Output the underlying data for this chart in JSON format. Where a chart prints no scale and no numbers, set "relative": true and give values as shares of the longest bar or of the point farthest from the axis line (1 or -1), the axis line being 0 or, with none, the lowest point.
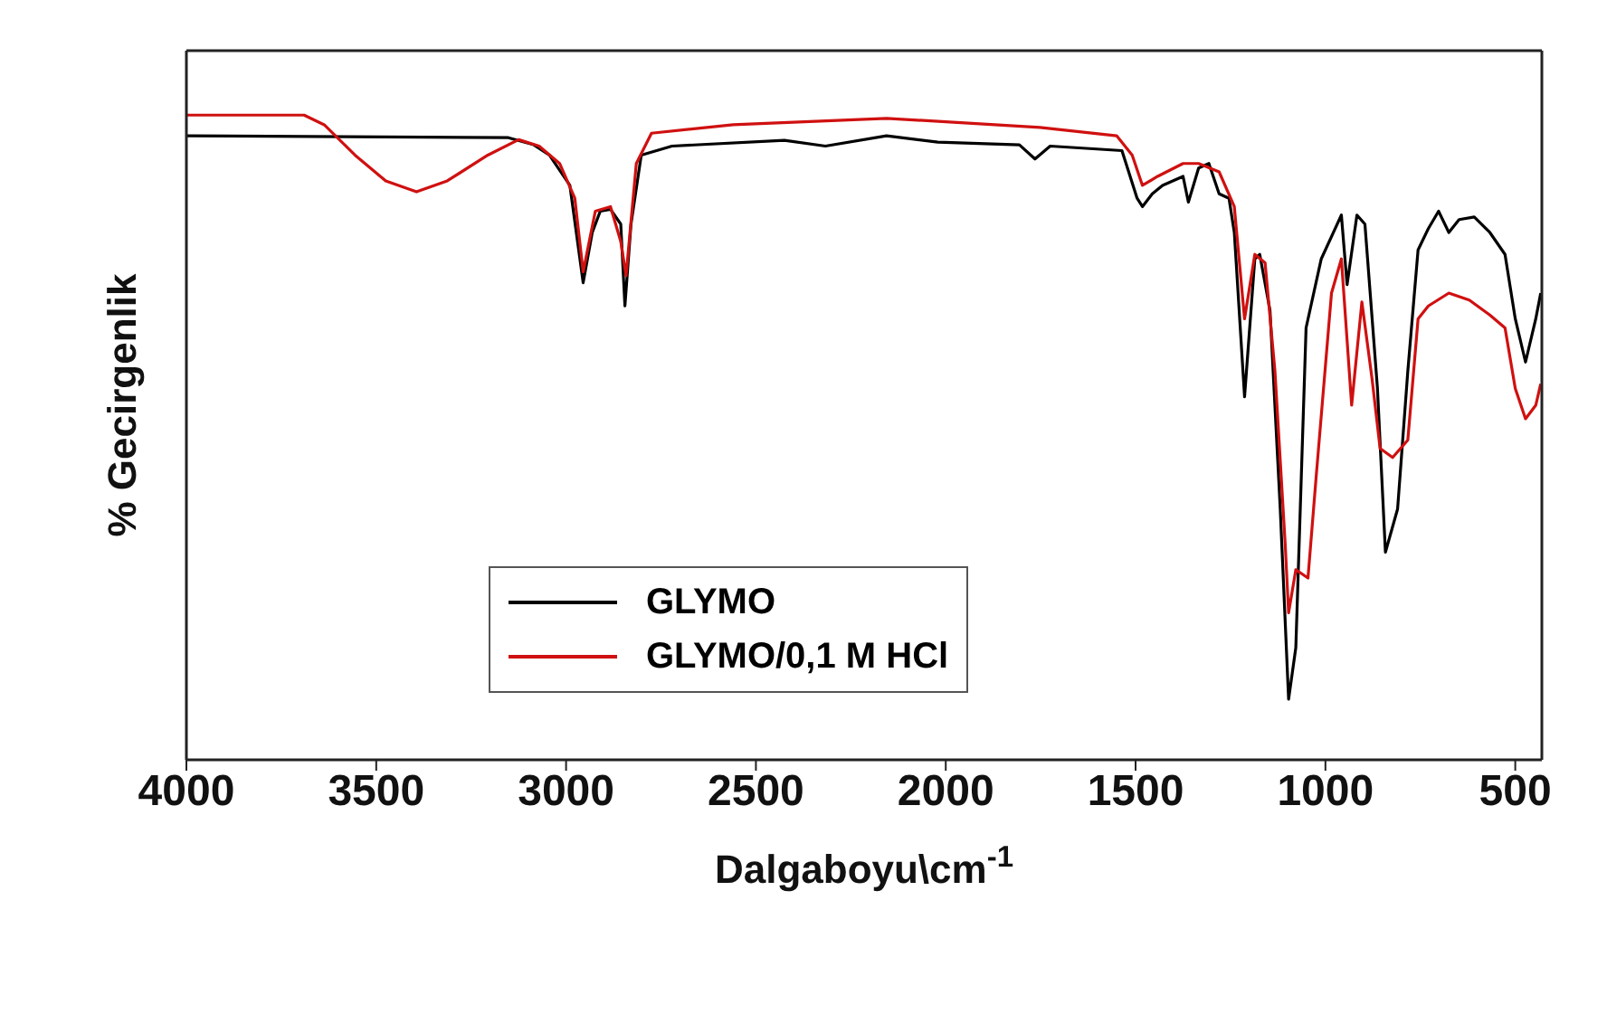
{
  "chart_data": {
    "type": "line",
    "relative": true,
    "xlabel": "Dalgaboyu\\cm$^{-1}$",
    "ylabel": "% Gecirgenlik",
    "xlim": [
      4000,
      430
    ],
    "xticks": [
      4000,
      3500,
      3000,
      2500,
      2000,
      1500,
      1000,
      500
    ],
    "legend": "center",
    "grid": false,
    "marker": "none",
    "line_style": "solid",
    "series": [
      {
        "name": "GLYMO",
        "color": "#000000",
        "x": [
          4000,
          3152,
          3085,
          3044,
          2990,
          2955,
          2931,
          2910,
          2883,
          2856,
          2845,
          2829,
          2802,
          2721,
          2425,
          2317,
          2156,
          2021,
          1806,
          1765,
          1725,
          1536,
          1496,
          1482,
          1456,
          1429,
          1375,
          1361,
          1334,
          1307,
          1280,
          1254,
          1240,
          1213,
          1186,
          1173,
          1146,
          1119,
          1097,
          1078,
          1051,
          1011,
          958,
          943,
          917,
          896,
          863,
          842,
          810,
          783,
          756,
          729,
          702,
          675,
          648,
          608,
          567,
          527,
          500,
          473,
          446,
          433
        ],
        "values": [
          0.968,
          0.965,
          0.954,
          0.938,
          0.891,
          0.74,
          0.818,
          0.851,
          0.854,
          0.831,
          0.704,
          0.831,
          0.938,
          0.952,
          0.961,
          0.952,
          0.968,
          0.958,
          0.954,
          0.932,
          0.952,
          0.945,
          0.871,
          0.858,
          0.878,
          0.891,
          0.905,
          0.865,
          0.918,
          0.925,
          0.878,
          0.871,
          0.818,
          0.563,
          0.777,
          0.784,
          0.697,
          0.389,
          0.094,
          0.174,
          0.67,
          0.777,
          0.845,
          0.737,
          0.845,
          0.831,
          0.576,
          0.322,
          0.389,
          0.603,
          0.791,
          0.824,
          0.851,
          0.818,
          0.838,
          0.842,
          0.818,
          0.784,
          0.684,
          0.617,
          0.684,
          0.724
        ]
      },
      {
        "name": "GLYMO/0,1 M HCl",
        "color": "#d01010",
        "x": [
          4000,
          3690,
          3637,
          3556,
          3475,
          3394,
          3313,
          3206,
          3125,
          3071,
          3017,
          2977,
          2955,
          2923,
          2883,
          2856,
          2842,
          2815,
          2775,
          2560,
          2156,
          1752,
          1550,
          1509,
          1482,
          1442,
          1375,
          1334,
          1280,
          1240,
          1213,
          1186,
          1159,
          1133,
          1106,
          1097,
          1078,
          1046,
          1024,
          984,
          958,
          931,
          904,
          877,
          856,
          823,
          783,
          756,
          729,
          675,
          621,
          567,
          527,
          500,
          473,
          446,
          433
        ],
        "values": [
          1,
          1,
          0.985,
          0.938,
          0.898,
          0.881,
          0.898,
          0.938,
          0.962,
          0.952,
          0.925,
          0.871,
          0.757,
          0.851,
          0.858,
          0.804,
          0.751,
          0.925,
          0.972,
          0.985,
          0.995,
          0.981,
          0.968,
          0.938,
          0.891,
          0.905,
          0.925,
          0.925,
          0.912,
          0.858,
          0.684,
          0.784,
          0.771,
          0.603,
          0.335,
          0.228,
          0.295,
          0.282,
          0.442,
          0.724,
          0.777,
          0.55,
          0.71,
          0.59,
          0.483,
          0.469,
          0.496,
          0.684,
          0.704,
          0.724,
          0.713,
          0.69,
          0.67,
          0.576,
          0.529,
          0.55,
          0.583
        ]
      }
    ]
  }
}
